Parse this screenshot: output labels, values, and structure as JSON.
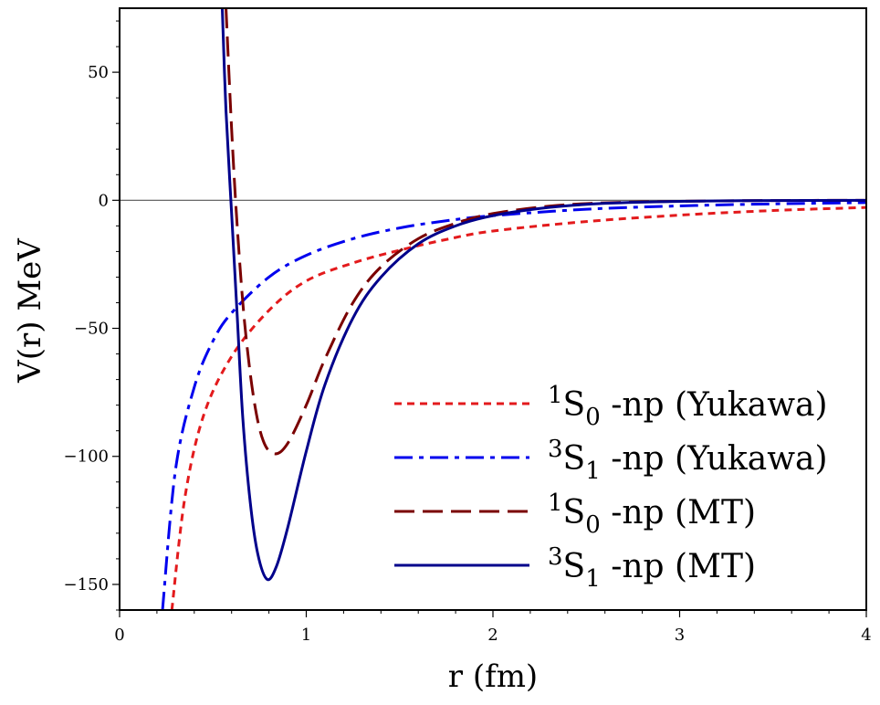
{
  "chart_data": {
    "type": "line",
    "xlabel": "r (fm)",
    "ylabel": "V(r) MeV",
    "xlim": [
      0,
      4
    ],
    "ylim": [
      -160,
      75
    ],
    "x_ticks": [
      {
        "value": 0,
        "label": "0"
      },
      {
        "value": 1,
        "label": "1"
      },
      {
        "value": 2,
        "label": "2"
      },
      {
        "value": 3,
        "label": "3"
      },
      {
        "value": 4,
        "label": "4"
      }
    ],
    "y_ticks": [
      {
        "value": 50,
        "label": "50"
      },
      {
        "value": 0,
        "label": "0"
      },
      {
        "value": -50,
        "label": "−50"
      },
      {
        "value": -100,
        "label": "−100"
      },
      {
        "value": -150,
        "label": "−150"
      }
    ],
    "reference_line": {
      "y": 0
    },
    "legend_position": "bottom-right",
    "series": [
      {
        "name": "1S0 -np (Yukawa)",
        "legend": {
          "sup": "1",
          "main": "S",
          "sub": "0",
          "rest": " -np (Yukawa)"
        },
        "color": "#e31a1c",
        "dash": "short",
        "x": [
          0.28,
          0.35,
          0.45,
          0.6,
          0.8,
          1.0,
          1.25,
          1.5,
          1.75,
          2.0,
          2.5,
          3.0,
          3.5,
          4.0
        ],
        "y": [
          -160,
          -116,
          -84,
          -61,
          -43,
          -31.5,
          -24.5,
          -19.5,
          -15.3,
          -12,
          -8.3,
          -5.8,
          -4,
          -2.8
        ]
      },
      {
        "name": "3S1 -np (Yukawa)",
        "legend": {
          "sup": "3",
          "main": "S",
          "sub": "1",
          "rest": " -np (Yukawa)"
        },
        "color": "#0000ee",
        "dash": "dashdot",
        "x": [
          0.23,
          0.3,
          0.4,
          0.5,
          0.6,
          0.8,
          1.0,
          1.25,
          1.5,
          1.75,
          2.0,
          2.5,
          3.0,
          3.5,
          4.0
        ],
        "y": [
          -160,
          -105,
          -73,
          -55,
          -44,
          -30,
          -21.5,
          -15,
          -10.8,
          -8,
          -6,
          -3.5,
          -2.2,
          -1.4,
          -0.9
        ]
      },
      {
        "name": "1S0 -np (MT)",
        "legend": {
          "sup": "1",
          "main": "S",
          "sub": "0",
          "rest": " -np (MT)"
        },
        "color": "#7a0000",
        "dash": "long",
        "x": [
          0.57,
          0.6,
          0.63,
          0.67,
          0.72,
          0.77,
          0.83,
          0.9,
          1.0,
          1.1,
          1.25,
          1.4,
          1.6,
          1.8,
          2.0,
          2.3,
          2.6,
          3.0,
          3.5,
          4.0
        ],
        "y": [
          75,
          28,
          -10,
          -48,
          -78,
          -94,
          -99,
          -95,
          -80,
          -62,
          -40,
          -26,
          -15,
          -9,
          -5.2,
          -2.3,
          -1,
          -0.4,
          -0.1,
          0
        ]
      },
      {
        "name": "3S1 -np (MT)",
        "legend": {
          "sup": "3",
          "main": "S",
          "sub": "1",
          "rest": " -np (MT)"
        },
        "color": "#00008b",
        "dash": "solid",
        "x": [
          0.55,
          0.57,
          0.6,
          0.63,
          0.66,
          0.7,
          0.74,
          0.79,
          0.84,
          0.9,
          1.0,
          1.1,
          1.25,
          1.4,
          1.6,
          1.8,
          2.0,
          2.3,
          2.6,
          3.0,
          3.5,
          4.0
        ],
        "y": [
          75,
          35,
          -5,
          -45,
          -85,
          -118,
          -138,
          -148,
          -143,
          -128,
          -98,
          -72,
          -46,
          -30,
          -17,
          -10,
          -6,
          -2.8,
          -1.2,
          -0.4,
          -0.1,
          0
        ]
      }
    ]
  }
}
